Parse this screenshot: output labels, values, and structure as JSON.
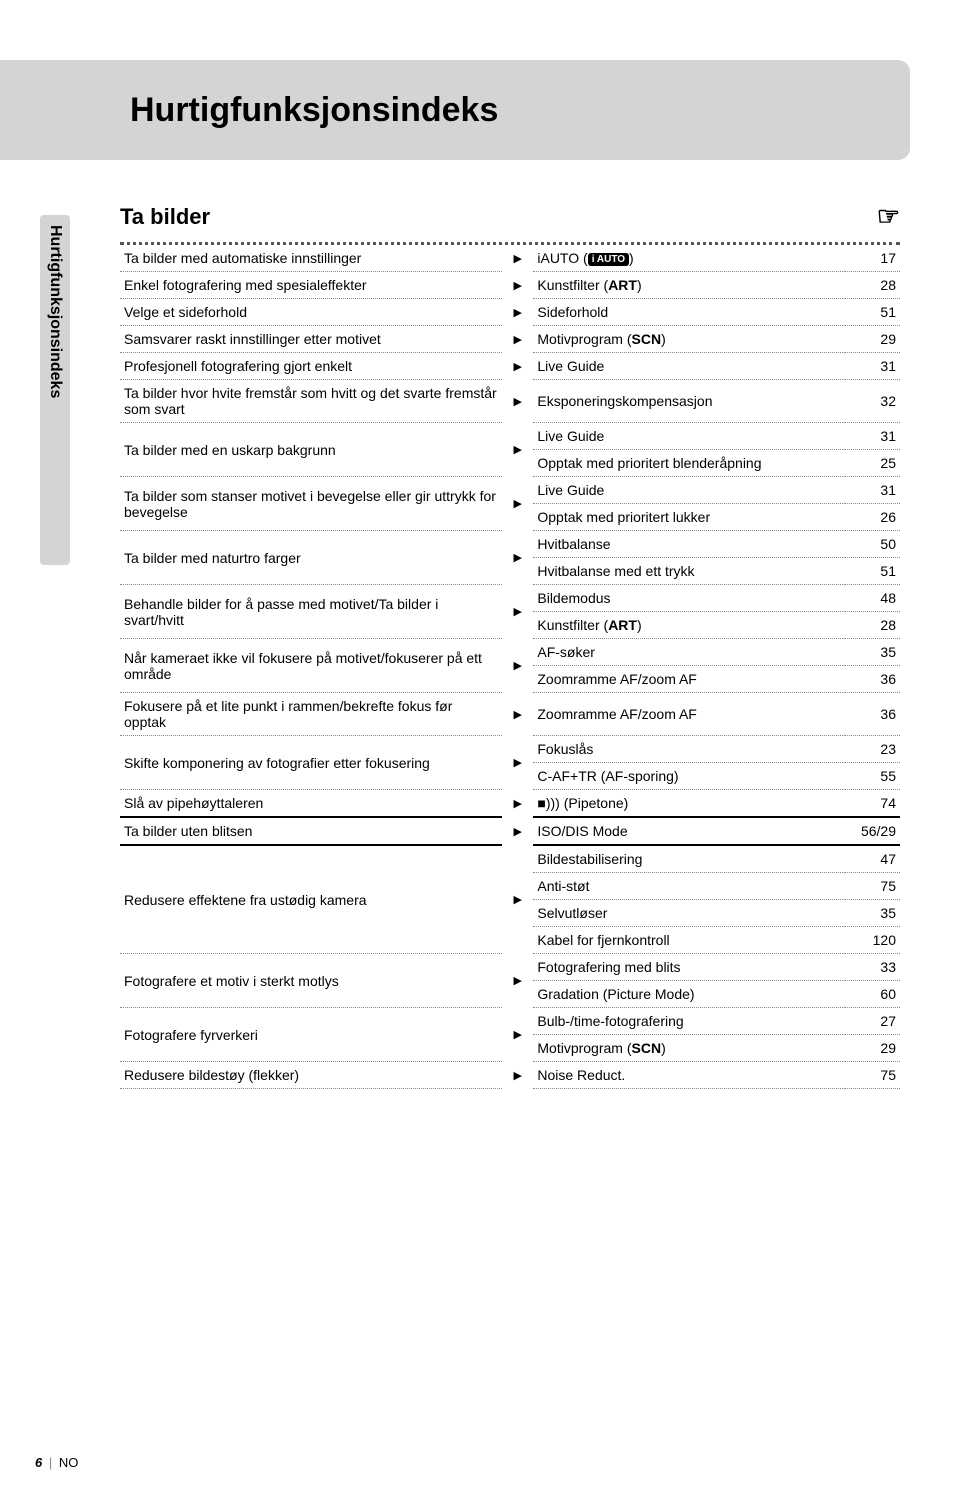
{
  "header": {
    "title": "Hurtigfunksjonsindeks"
  },
  "sideTab": {
    "label": "Hurtigfunksjonsindeks"
  },
  "section": {
    "title": "Ta bilder",
    "handIcon": "☞"
  },
  "rows": [
    {
      "left": "Ta bilder med automatiske innstillinger",
      "arrow": "▶",
      "rights": [
        {
          "pre": "iAUTO (",
          "badge": "i AUTO",
          "post": ")",
          "page": "17"
        }
      ],
      "boldEnd": false
    },
    {
      "left": "Enkel fotografering med spesialeffekter",
      "arrow": "▶",
      "rights": [
        {
          "pre": "Kunstfilter (",
          "bold": "ART",
          "post": ")",
          "page": "28"
        }
      ],
      "boldEnd": false
    },
    {
      "left": "Velge et sideforhold",
      "arrow": "▶",
      "rights": [
        {
          "text": "Sideforhold",
          "page": "51"
        }
      ],
      "boldEnd": false
    },
    {
      "left": "Samsvarer raskt innstillinger etter motivet",
      "arrow": "▶",
      "rights": [
        {
          "pre": "Motivprogram (",
          "bold": "SCN",
          "post": ")",
          "page": "29"
        }
      ],
      "boldEnd": false
    },
    {
      "left": "Profesjonell fotografering gjort enkelt",
      "arrow": "▶",
      "rights": [
        {
          "text": "Live Guide",
          "page": "31"
        }
      ],
      "boldEnd": false
    },
    {
      "left": "Ta bilder hvor hvite fremstår som hvitt og det svarte fremstår som svart",
      "arrow": "▶",
      "rights": [
        {
          "text": "Eksponeringskompensasjon",
          "page": "32"
        }
      ],
      "boldEnd": false
    },
    {
      "left": "Ta bilder med en uskarp bakgrunn",
      "arrow": "▶",
      "rights": [
        {
          "text": "Live Guide",
          "page": "31"
        },
        {
          "text": "Opptak med prioritert blenderåpning",
          "page": "25"
        }
      ],
      "boldEnd": false
    },
    {
      "left": "Ta bilder som stanser motivet i bevegelse eller gir uttrykk for bevegelse",
      "arrow": "▶",
      "rights": [
        {
          "text": "Live Guide",
          "page": "31"
        },
        {
          "text": "Opptak med prioritert lukker",
          "page": "26"
        }
      ],
      "boldEnd": false
    },
    {
      "left": "Ta bilder med naturtro farger",
      "arrow": "▶",
      "rights": [
        {
          "text": "Hvitbalanse",
          "page": "50"
        },
        {
          "text": "Hvitbalanse med ett trykk",
          "page": "51"
        }
      ],
      "boldEnd": false
    },
    {
      "left": "Behandle bilder for å passe med motivet/Ta bilder i svart/hvitt",
      "arrow": "▶",
      "rights": [
        {
          "text": "Bildemodus",
          "page": "48"
        },
        {
          "pre": "Kunstfilter (",
          "bold": "ART",
          "post": ")",
          "page": "28"
        }
      ],
      "boldEnd": false
    },
    {
      "left": "Når kameraet ikke vil fokusere på motivet/fokuserer på ett område",
      "arrow": "▶",
      "rights": [
        {
          "text": "AF-søker",
          "page": "35"
        },
        {
          "text": "Zoomramme AF/zoom AF",
          "page": "36"
        }
      ],
      "boldEnd": false
    },
    {
      "left": "Fokusere på et lite punkt i rammen/bekrefte fokus før opptak",
      "arrow": "▶",
      "rights": [
        {
          "text": "Zoomramme AF/zoom AF",
          "page": "36"
        }
      ],
      "boldEnd": false
    },
    {
      "left": "Skifte komponering av fotografier etter fokusering",
      "arrow": "▶",
      "rights": [
        {
          "text": "Fokuslås",
          "page": "23"
        },
        {
          "text": "C-AF+TR (AF-sporing)",
          "page": "55"
        }
      ],
      "boldEnd": false
    },
    {
      "left": "Slå av pipehøyttaleren",
      "arrow": "▶",
      "rights": [
        {
          "text": "■))) (Pipetone)",
          "page": "74"
        }
      ],
      "boldEnd": true
    },
    {
      "left": "Ta bilder uten blitsen",
      "arrow": "▶",
      "rights": [
        {
          "text": "ISO/DIS Mode",
          "page": "56/29"
        }
      ],
      "boldEnd": true
    },
    {
      "left": "Redusere effektene fra ustødig kamera",
      "arrow": "▶",
      "rights": [
        {
          "text": "Bildestabilisering",
          "page": "47"
        },
        {
          "text": "Anti-støt",
          "page": "75"
        },
        {
          "text": "Selvutløser",
          "page": "35"
        },
        {
          "text": "Kabel for fjernkontroll",
          "page": "120"
        }
      ],
      "boldEnd": false
    },
    {
      "left": "Fotografere et motiv i sterkt motlys",
      "arrow": "▶",
      "rights": [
        {
          "text": "Fotografering med blits",
          "page": "33"
        },
        {
          "text": "Gradation (Picture Mode)",
          "page": "60"
        }
      ],
      "boldEnd": false
    },
    {
      "left": "Fotografere fyrverkeri",
      "arrow": "▶",
      "rights": [
        {
          "text": "Bulb-/time-fotografering",
          "page": "27"
        },
        {
          "pre": "Motivprogram (",
          "bold": "SCN",
          "post": ")",
          "page": "29"
        }
      ],
      "boldEnd": false
    },
    {
      "left": "Redusere bildestøy (flekker)",
      "arrow": "▶",
      "rights": [
        {
          "text": "Noise Reduct.",
          "page": "75"
        }
      ],
      "boldEnd": false
    }
  ],
  "footer": {
    "pageNum": "6",
    "lang": "NO"
  }
}
